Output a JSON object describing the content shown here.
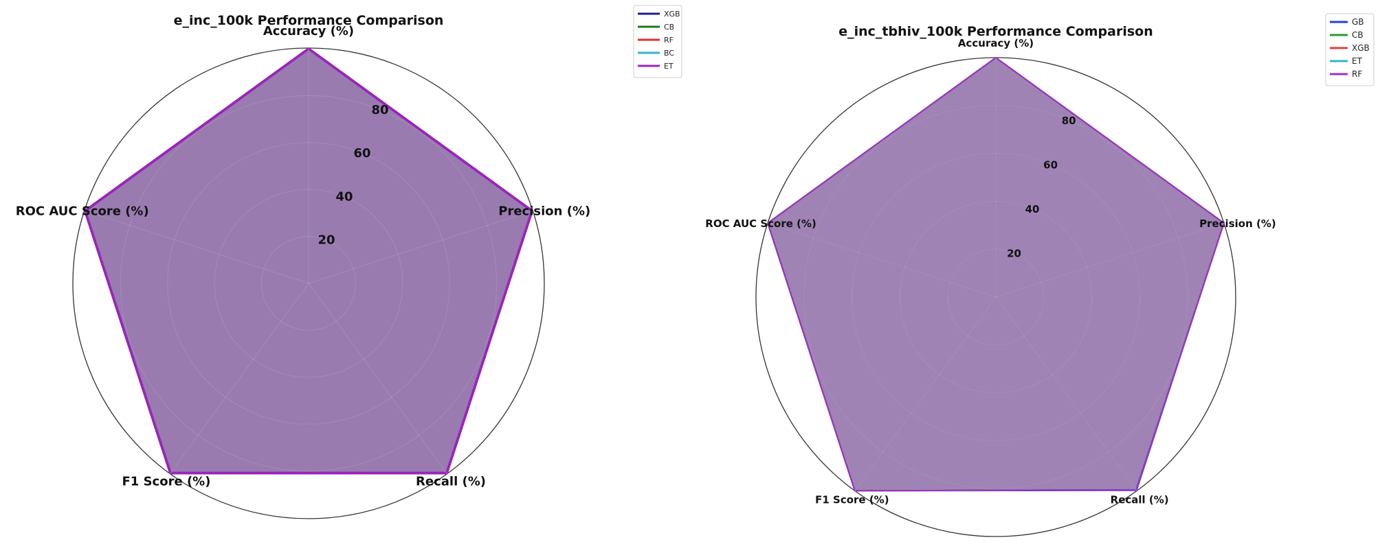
{
  "colors": {
    "XGB_left": "#1c1c8c",
    "CB": "#1a7a1a",
    "RF": "#e03030",
    "BC": "#30b8c0",
    "ET": "#a020c0",
    "GB": "#2040e0",
    "XGB_right": "#e04040",
    "fill": "#5a2a7f"
  },
  "chart_data": [
    {
      "type": "radar",
      "title": "e_inc_100k Performance Comparison",
      "axes": [
        "Accuracy (%)",
        "Precision (%)",
        "Recall (%)",
        "F1 Score (%)",
        "ROC AUC Score (%)"
      ],
      "rlim": [
        0,
        100
      ],
      "rticks": [
        20,
        40,
        60,
        80
      ],
      "grid": true,
      "legend_position": "outside-top-right",
      "series": [
        {
          "name": "XGB",
          "values": [
            100,
            100,
            100,
            100,
            100
          ],
          "color": "#1c1c8c"
        },
        {
          "name": "CB",
          "values": [
            100,
            100,
            100,
            100,
            100
          ],
          "color": "#1a7a1a"
        },
        {
          "name": "RF",
          "values": [
            100,
            100,
            100,
            100,
            100
          ],
          "color": "#e03030"
        },
        {
          "name": "BC",
          "values": [
            100,
            100,
            100,
            100,
            100
          ],
          "color": "#30b8c0"
        },
        {
          "name": "ET",
          "values": [
            100,
            100,
            100,
            100,
            100
          ],
          "color": "#a020c0"
        }
      ]
    },
    {
      "type": "radar",
      "title": "e_inc_tbhiv_100k Performance Comparison",
      "axes": [
        "Accuracy (%)",
        "Precision (%)",
        "Recall (%)",
        "F1 Score (%)",
        "ROC AUC Score (%)"
      ],
      "rlim": [
        0,
        100
      ],
      "rticks": [
        20,
        40,
        60,
        80
      ],
      "grid": true,
      "legend_position": "outside-top-right",
      "series": [
        {
          "name": "GB",
          "values": [
            100,
            100,
            99.8,
            100,
            100
          ],
          "color": "#2040e0"
        },
        {
          "name": "CB",
          "values": [
            100,
            100,
            99.5,
            100,
            100
          ],
          "color": "#2a9a2a"
        },
        {
          "name": "XGB",
          "values": [
            100,
            100,
            99.5,
            100,
            100
          ],
          "color": "#e04040"
        },
        {
          "name": "ET",
          "values": [
            100,
            100,
            99.5,
            100,
            100
          ],
          "color": "#30b8c0"
        },
        {
          "name": "RF",
          "values": [
            100,
            100,
            99.5,
            100,
            100
          ],
          "color": "#a030c0"
        }
      ]
    }
  ]
}
